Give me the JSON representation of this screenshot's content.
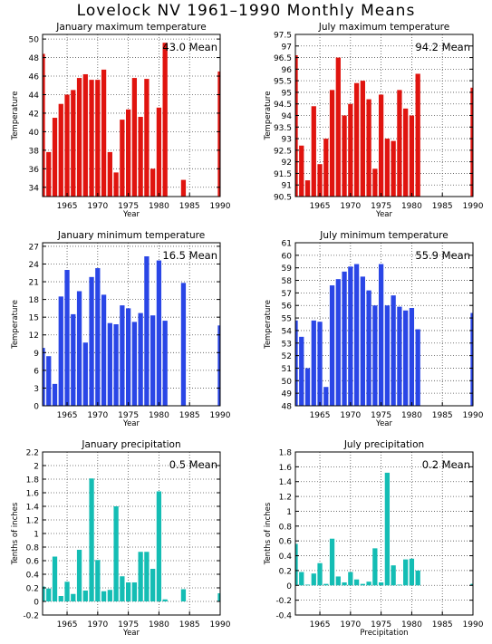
{
  "title": "Lovelock NV  1961–1990 Monthly Means",
  "colors": {
    "red": "#e0140f",
    "blue": "#2a46e6",
    "teal": "#14bdb4"
  },
  "chart_data": [
    {
      "id": "jan-max",
      "type": "bar",
      "color": "red",
      "title": "January maximum temperature",
      "ylabel": "Temperature",
      "xlabel": "Year",
      "mean_label": "43.0 Mean",
      "ylim": [
        33,
        50.5
      ],
      "yticks": [
        34,
        36,
        38,
        40,
        42,
        44,
        46,
        48,
        50
      ],
      "xticks": [
        1965,
        1970,
        1975,
        1980,
        1985,
        1990
      ],
      "x": [
        1961,
        1962,
        1963,
        1964,
        1965,
        1966,
        1967,
        1968,
        1969,
        1970,
        1971,
        1972,
        1973,
        1974,
        1975,
        1976,
        1977,
        1978,
        1979,
        1980,
        1981,
        1982,
        1983,
        1984,
        1985,
        1986,
        1987,
        1988,
        1989,
        1990
      ],
      "values": [
        48.4,
        37.8,
        41.5,
        43.0,
        44.0,
        44.5,
        45.8,
        46.2,
        45.6,
        45.6,
        46.7,
        37.8,
        35.6,
        41.3,
        42.4,
        45.8,
        41.6,
        45.7,
        36.0,
        42.6,
        49.6,
        null,
        null,
        34.8,
        null,
        null,
        null,
        null,
        null,
        46.5
      ]
    },
    {
      "id": "jul-max",
      "type": "bar",
      "color": "red",
      "title": "July maximum temperature",
      "ylabel": "Temperature",
      "xlabel": "Year",
      "mean_label": "94.2 Mean",
      "ylim": [
        90.5,
        97.5
      ],
      "yticks": [
        90.5,
        91,
        91.5,
        92,
        92.5,
        93,
        93.5,
        94,
        94.5,
        95,
        95.5,
        96,
        96.5,
        97,
        97.5
      ],
      "xticks": [
        1965,
        1970,
        1975,
        1980,
        1985,
        1990
      ],
      "x": [
        1961,
        1962,
        1963,
        1964,
        1965,
        1966,
        1967,
        1968,
        1969,
        1970,
        1971,
        1972,
        1973,
        1974,
        1975,
        1976,
        1977,
        1978,
        1979,
        1980,
        1981,
        1982,
        1983,
        1984,
        1985,
        1986,
        1987,
        1988,
        1989,
        1990
      ],
      "values": [
        96.6,
        92.7,
        91.2,
        94.4,
        91.9,
        93.0,
        95.1,
        96.5,
        94.0,
        94.5,
        95.4,
        95.5,
        94.7,
        91.7,
        94.9,
        93.0,
        92.9,
        95.1,
        94.3,
        94.0,
        95.8,
        null,
        null,
        null,
        null,
        null,
        null,
        null,
        null,
        95.2
      ]
    },
    {
      "id": "jan-min",
      "type": "bar",
      "color": "blue",
      "title": "January minimum temperature",
      "ylabel": "Temperature",
      "xlabel": "Year",
      "mean_label": "16.5 Mean",
      "ylim": [
        0,
        27.6
      ],
      "yticks": [
        0,
        3,
        6,
        9,
        12,
        15,
        18,
        21,
        24,
        27
      ],
      "xticks": [
        1965,
        1970,
        1975,
        1980,
        1985,
        1990
      ],
      "x": [
        1961,
        1962,
        1963,
        1964,
        1965,
        1966,
        1967,
        1968,
        1969,
        1970,
        1971,
        1972,
        1973,
        1974,
        1975,
        1976,
        1977,
        1978,
        1979,
        1980,
        1981,
        1982,
        1983,
        1984,
        1985,
        1986,
        1987,
        1988,
        1989,
        1990
      ],
      "values": [
        9.8,
        8.4,
        3.7,
        18.5,
        23.0,
        15.5,
        19.4,
        10.7,
        21.8,
        23.3,
        18.8,
        14.0,
        13.8,
        17.0,
        16.5,
        14.2,
        15.7,
        25.3,
        15.3,
        24.6,
        14.4,
        null,
        null,
        20.8,
        null,
        null,
        null,
        null,
        null,
        13.6
      ]
    },
    {
      "id": "jul-min",
      "type": "bar",
      "color": "blue",
      "title": "July minimum temperature",
      "ylabel": "Temperature",
      "xlabel": "Year",
      "mean_label": "55.9 Mean",
      "ylim": [
        48,
        61
      ],
      "yticks": [
        48,
        49,
        50,
        51,
        52,
        53,
        54,
        55,
        56,
        57,
        58,
        59,
        60,
        61
      ],
      "xticks": [
        1965,
        1970,
        1975,
        1980,
        1985,
        1990
      ],
      "x": [
        1961,
        1962,
        1963,
        1964,
        1965,
        1966,
        1967,
        1968,
        1969,
        1970,
        1971,
        1972,
        1973,
        1974,
        1975,
        1976,
        1977,
        1978,
        1979,
        1980,
        1981,
        1982,
        1983,
        1984,
        1985,
        1986,
        1987,
        1988,
        1989,
        1990
      ],
      "values": [
        54.8,
        53.5,
        51.0,
        54.8,
        54.7,
        49.5,
        57.6,
        58.1,
        58.7,
        59.1,
        59.3,
        58.3,
        57.2,
        56.0,
        59.3,
        56.0,
        56.8,
        55.9,
        55.6,
        55.8,
        54.1,
        null,
        null,
        null,
        null,
        null,
        null,
        null,
        null,
        55.4
      ]
    },
    {
      "id": "jan-precip",
      "type": "bar",
      "color": "teal",
      "title": "January precipitation",
      "ylabel": "Tenths of inches",
      "xlabel": "Year",
      "mean_label": "0.5 Mean",
      "ylim": [
        -0.2,
        2.2
      ],
      "yticks": [
        -0.2,
        0,
        0.2,
        0.4,
        0.6,
        0.8,
        1,
        1.2,
        1.4,
        1.6,
        1.8,
        2,
        2.2
      ],
      "xticks": [
        1965,
        1970,
        1975,
        1980,
        1985,
        1990
      ],
      "x": [
        1961,
        1962,
        1963,
        1964,
        1965,
        1966,
        1967,
        1968,
        1969,
        1970,
        1971,
        1972,
        1973,
        1974,
        1975,
        1976,
        1977,
        1978,
        1979,
        1980,
        1981,
        1982,
        1983,
        1984,
        1985,
        1986,
        1987,
        1988,
        1989,
        1990
      ],
      "values": [
        0.22,
        0.19,
        0.66,
        0.08,
        0.29,
        0.11,
        0.76,
        0.16,
        1.81,
        0.61,
        0.15,
        0.17,
        1.4,
        0.37,
        0.28,
        0.28,
        0.73,
        0.73,
        0.48,
        1.62,
        0.03,
        null,
        null,
        0.18,
        null,
        null,
        null,
        null,
        null,
        0.12
      ]
    },
    {
      "id": "jul-precip",
      "type": "bar",
      "color": "teal",
      "title": "July precipitation",
      "ylabel": "Tenths of inches",
      "xlabel": "Precipitation",
      "mean_label": "0.2 Mean",
      "ylim": [
        -0.4,
        1.8
      ],
      "yticks": [
        -0.4,
        -0.2,
        0,
        0.2,
        0.4,
        0.6,
        0.8,
        1,
        1.2,
        1.4,
        1.6,
        1.8
      ],
      "xticks": [
        1965,
        1970,
        1975,
        1980,
        1985,
        1990
      ],
      "x": [
        1961,
        1962,
        1963,
        1964,
        1965,
        1966,
        1967,
        1968,
        1969,
        1970,
        1971,
        1972,
        1973,
        1974,
        1975,
        1976,
        1977,
        1978,
        1979,
        1980,
        1981,
        1982,
        1983,
        1984,
        1985,
        1986,
        1987,
        1988,
        1989,
        1990
      ],
      "values": [
        0.56,
        0.18,
        0.01,
        0.16,
        0.3,
        0.02,
        0.63,
        0.12,
        0.04,
        0.18,
        0.08,
        0.02,
        0.05,
        0.5,
        0.04,
        1.52,
        0.27,
        0.01,
        0.35,
        0.36,
        0.2,
        null,
        null,
        null,
        null,
        null,
        null,
        null,
        null,
        0.02
      ]
    }
  ]
}
